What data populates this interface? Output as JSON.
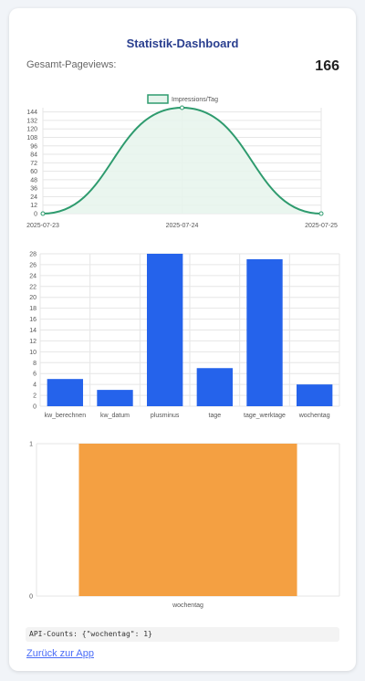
{
  "page": {
    "title": "Statistik-Dashboard",
    "pageviews_label": "Gesamt-Pageviews:",
    "pageviews_value": "166",
    "api_counts": "API-Counts: {\"wochentag\": 1}",
    "back_link": "Zurück zur App"
  },
  "colors": {
    "line": "#2e9b6e",
    "line_fill": "#e6f4ec",
    "bar_blue": "#2563eb",
    "bar_orange": "#f4a042",
    "title": "#2a3f8f"
  },
  "chart_data": [
    {
      "type": "line",
      "legend": "Impressions/Tag",
      "legend_position": "top",
      "x": [
        "2025-07-23",
        "2025-07-24",
        "2025-07-25"
      ],
      "values": [
        0,
        150,
        0
      ],
      "yticks": [
        0,
        12,
        24,
        36,
        48,
        60,
        72,
        84,
        96,
        108,
        120,
        132,
        144
      ],
      "ylim": [
        0,
        150
      ],
      "grid": true,
      "fill": true
    },
    {
      "type": "bar",
      "categories": [
        "kw_berechnen",
        "kw_datum",
        "plusminus",
        "tage",
        "tage_werktage",
        "wochentag"
      ],
      "values": [
        5,
        3,
        28,
        7,
        27,
        4
      ],
      "yticks": [
        0,
        2,
        4,
        6,
        8,
        10,
        12,
        14,
        16,
        18,
        20,
        22,
        24,
        26,
        28
      ],
      "ylim": [
        0,
        28
      ],
      "grid": true
    },
    {
      "type": "bar",
      "categories": [
        "wochentag"
      ],
      "values": [
        1
      ],
      "yticks": [
        0,
        1
      ],
      "ylim": [
        0,
        1
      ],
      "grid": true
    }
  ]
}
